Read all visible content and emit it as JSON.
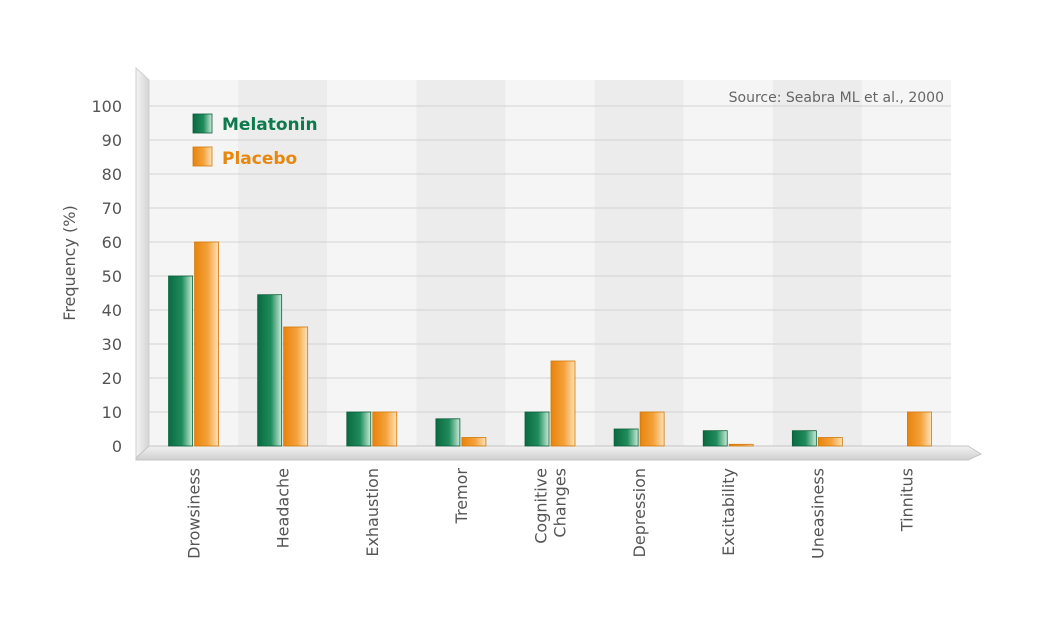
{
  "chart_data": {
    "type": "bar",
    "ylabel": "Frequency (%)",
    "xlabel": "",
    "source": "Source: Seabra ML et al., 2000",
    "ylim": [
      0,
      100
    ],
    "yticks": [
      0,
      10,
      20,
      30,
      40,
      50,
      60,
      70,
      80,
      90,
      100
    ],
    "grid": true,
    "legend_position": "top-left",
    "categories": [
      [
        "Drowsiness"
      ],
      [
        "Headache"
      ],
      [
        "Exhaustion"
      ],
      [
        "Tremor"
      ],
      [
        "Cognitive",
        "Changes"
      ],
      [
        "Depression"
      ],
      [
        "Excitability"
      ],
      [
        "Uneasiness"
      ],
      [
        "Tinnitus"
      ]
    ],
    "series": [
      {
        "name": "Melatonin",
        "color": "#0d7a4e",
        "label_color": "#0d7a4e",
        "values": [
          50,
          44.5,
          10,
          8,
          10,
          5,
          4.5,
          4.5,
          0
        ]
      },
      {
        "name": "Placebo",
        "color": "#f0961e",
        "label_color": "#e8870e",
        "values": [
          60,
          35,
          10,
          2.5,
          25,
          10,
          0.5,
          2.5,
          10
        ]
      }
    ]
  }
}
